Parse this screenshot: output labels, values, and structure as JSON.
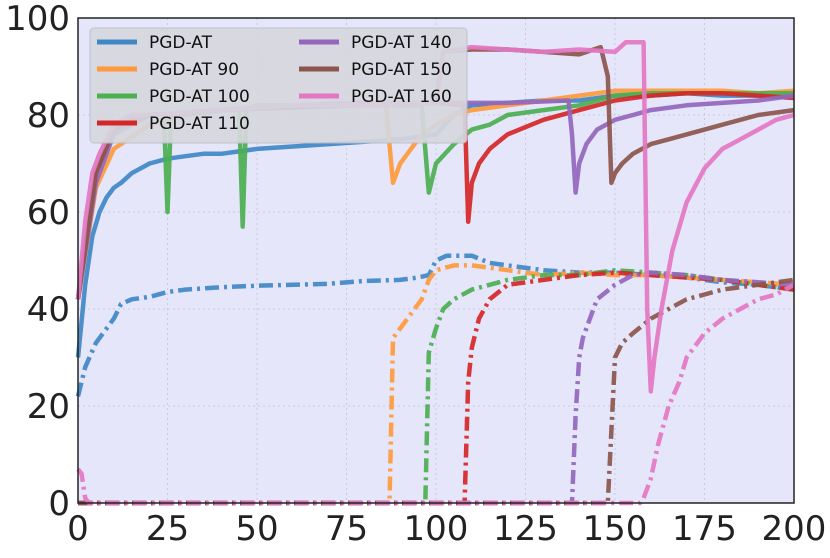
{
  "chart_data": {
    "type": "line",
    "title": "",
    "xlabel": "",
    "ylabel": "",
    "xlim": [
      0,
      200
    ],
    "ylim": [
      0,
      100
    ],
    "x_ticks": [
      0,
      25,
      50,
      75,
      100,
      125,
      150,
      175,
      200
    ],
    "y_ticks": [
      0,
      20,
      40,
      60,
      80,
      100
    ],
    "grid": true,
    "plot_background": "#e6e6fa",
    "legend_placement": "top-left",
    "line_styles": {
      "clean_accuracy": "solid",
      "robust_accuracy": "dash-dot"
    },
    "series": [
      {
        "name": "PGD-AT",
        "color": "#3f88c5",
        "solid": [
          [
            0,
            30
          ],
          [
            2,
            45
          ],
          [
            4,
            55
          ],
          [
            6,
            60
          ],
          [
            8,
            63
          ],
          [
            10,
            65
          ],
          [
            12,
            66
          ],
          [
            15,
            68
          ],
          [
            20,
            70
          ],
          [
            25,
            71
          ],
          [
            30,
            71.5
          ],
          [
            35,
            72
          ],
          [
            40,
            72
          ],
          [
            45,
            72.5
          ],
          [
            50,
            73
          ],
          [
            60,
            73.5
          ],
          [
            70,
            74
          ],
          [
            80,
            74.5
          ],
          [
            90,
            75
          ],
          [
            100,
            76
          ],
          [
            105,
            80
          ],
          [
            110,
            82
          ],
          [
            120,
            82.5
          ],
          [
            130,
            83
          ],
          [
            140,
            83
          ],
          [
            150,
            84
          ],
          [
            160,
            84
          ],
          [
            170,
            84.5
          ],
          [
            180,
            84
          ],
          [
            190,
            84
          ],
          [
            200,
            84
          ]
        ],
        "dashdot": [
          [
            0,
            22
          ],
          [
            2,
            28
          ],
          [
            5,
            33
          ],
          [
            8,
            36
          ],
          [
            10,
            38
          ],
          [
            12,
            41
          ],
          [
            15,
            42
          ],
          [
            20,
            42.5
          ],
          [
            25,
            43.5
          ],
          [
            30,
            44
          ],
          [
            40,
            44.5
          ],
          [
            50,
            44.8
          ],
          [
            60,
            45
          ],
          [
            70,
            45.2
          ],
          [
            80,
            45.8
          ],
          [
            90,
            46
          ],
          [
            95,
            46.5
          ],
          [
            98,
            47
          ],
          [
            100,
            50
          ],
          [
            103,
            51
          ],
          [
            110,
            51
          ],
          [
            115,
            49.5
          ],
          [
            120,
            49
          ],
          [
            130,
            48
          ],
          [
            140,
            47.5
          ],
          [
            150,
            47.5
          ],
          [
            160,
            47
          ],
          [
            170,
            46.5
          ],
          [
            180,
            45.5
          ],
          [
            190,
            45
          ],
          [
            200,
            44
          ]
        ]
      },
      {
        "name": "PGD-AT 90",
        "color": "#ff9a3c",
        "solid": [
          [
            0,
            42
          ],
          [
            5,
            65
          ],
          [
            10,
            73
          ],
          [
            20,
            78
          ],
          [
            30,
            80
          ],
          [
            40,
            81
          ],
          [
            50,
            81.5
          ],
          [
            60,
            82
          ],
          [
            70,
            82
          ],
          [
            80,
            82.5
          ],
          [
            86,
            82
          ],
          [
            88,
            66
          ],
          [
            90,
            70
          ],
          [
            92,
            72
          ],
          [
            95,
            75
          ],
          [
            100,
            78
          ],
          [
            105,
            80
          ],
          [
            110,
            81
          ],
          [
            120,
            82
          ],
          [
            130,
            83
          ],
          [
            140,
            84
          ],
          [
            150,
            85
          ],
          [
            160,
            85
          ],
          [
            170,
            85
          ],
          [
            180,
            85
          ],
          [
            190,
            84.5
          ],
          [
            200,
            85
          ]
        ],
        "dashdot": [
          [
            0,
            0
          ],
          [
            87,
            0
          ],
          [
            88,
            34
          ],
          [
            90,
            36
          ],
          [
            92,
            38
          ],
          [
            94,
            40
          ],
          [
            96,
            42
          ],
          [
            98,
            46
          ],
          [
            100,
            48
          ],
          [
            105,
            49
          ],
          [
            110,
            49
          ],
          [
            120,
            48
          ],
          [
            130,
            47
          ],
          [
            140,
            47.5
          ],
          [
            150,
            47
          ],
          [
            160,
            47
          ],
          [
            170,
            46.5
          ],
          [
            180,
            46
          ],
          [
            190,
            45.5
          ],
          [
            200,
            45
          ]
        ]
      },
      {
        "name": "PGD-AT 100",
        "color": "#4caf50",
        "solid": [
          [
            0,
            42
          ],
          [
            5,
            68
          ],
          [
            10,
            78
          ],
          [
            15,
            80
          ],
          [
            20,
            80
          ],
          [
            24,
            80
          ],
          [
            25,
            60
          ],
          [
            26,
            80
          ],
          [
            30,
            80
          ],
          [
            40,
            81
          ],
          [
            45,
            81
          ],
          [
            46,
            57
          ],
          [
            47,
            81
          ],
          [
            50,
            82
          ],
          [
            60,
            82
          ],
          [
            70,
            82
          ],
          [
            80,
            82
          ],
          [
            90,
            82
          ],
          [
            96,
            82
          ],
          [
            98,
            64
          ],
          [
            100,
            70
          ],
          [
            105,
            74
          ],
          [
            110,
            77
          ],
          [
            115,
            78
          ],
          [
            120,
            80
          ],
          [
            130,
            81
          ],
          [
            140,
            82
          ],
          [
            150,
            84
          ],
          [
            160,
            84.5
          ],
          [
            170,
            84.5
          ],
          [
            180,
            84.5
          ],
          [
            190,
            84.5
          ],
          [
            200,
            84.5
          ]
        ],
        "dashdot": [
          [
            0,
            0
          ],
          [
            97,
            0
          ],
          [
            98,
            31
          ],
          [
            100,
            36
          ],
          [
            102,
            40
          ],
          [
            105,
            42
          ],
          [
            110,
            44
          ],
          [
            115,
            45
          ],
          [
            120,
            46
          ],
          [
            130,
            47
          ],
          [
            140,
            47
          ],
          [
            150,
            48
          ],
          [
            160,
            47.5
          ],
          [
            170,
            47
          ],
          [
            180,
            46
          ],
          [
            190,
            45
          ],
          [
            200,
            44
          ]
        ]
      },
      {
        "name": "PGD-AT 110",
        "color": "#d62728",
        "solid": [
          [
            0,
            42
          ],
          [
            5,
            68
          ],
          [
            10,
            77
          ],
          [
            15,
            79
          ],
          [
            20,
            80
          ],
          [
            40,
            81
          ],
          [
            60,
            82
          ],
          [
            80,
            82
          ],
          [
            100,
            82.5
          ],
          [
            108,
            82
          ],
          [
            109,
            58
          ],
          [
            110,
            66
          ],
          [
            112,
            70
          ],
          [
            115,
            73
          ],
          [
            120,
            76
          ],
          [
            130,
            79
          ],
          [
            140,
            81
          ],
          [
            150,
            83
          ],
          [
            160,
            84
          ],
          [
            170,
            84.5
          ],
          [
            180,
            84.5
          ],
          [
            190,
            84
          ],
          [
            200,
            83.5
          ]
        ],
        "dashdot": [
          [
            0,
            0
          ],
          [
            108,
            0
          ],
          [
            109,
            25
          ],
          [
            110,
            32
          ],
          [
            112,
            38
          ],
          [
            115,
            42
          ],
          [
            120,
            45
          ],
          [
            130,
            46
          ],
          [
            140,
            47
          ],
          [
            150,
            47.5
          ],
          [
            160,
            47
          ],
          [
            170,
            46.5
          ],
          [
            180,
            46
          ],
          [
            190,
            45
          ],
          [
            200,
            44
          ]
        ]
      },
      {
        "name": "PGD-AT 140",
        "color": "#9467bd",
        "solid": [
          [
            0,
            42
          ],
          [
            5,
            66
          ],
          [
            10,
            76
          ],
          [
            20,
            80
          ],
          [
            40,
            81
          ],
          [
            60,
            82
          ],
          [
            80,
            82.5
          ],
          [
            100,
            82.5
          ],
          [
            120,
            82.5
          ],
          [
            137,
            83
          ],
          [
            138,
            76
          ],
          [
            139,
            64
          ],
          [
            140,
            70
          ],
          [
            142,
            74
          ],
          [
            145,
            77
          ],
          [
            150,
            79
          ],
          [
            155,
            80
          ],
          [
            160,
            81
          ],
          [
            170,
            82
          ],
          [
            180,
            82.5
          ],
          [
            190,
            83
          ],
          [
            200,
            84
          ]
        ],
        "dashdot": [
          [
            0,
            0
          ],
          [
            138,
            0
          ],
          [
            139,
            18
          ],
          [
            140,
            30
          ],
          [
            141,
            34
          ],
          [
            143,
            38
          ],
          [
            145,
            42
          ],
          [
            150,
            45
          ],
          [
            155,
            47
          ],
          [
            160,
            47.5
          ],
          [
            170,
            47
          ],
          [
            180,
            46
          ],
          [
            190,
            45.5
          ],
          [
            200,
            45
          ]
        ]
      },
      {
        "name": "PGD-AT 150",
        "color": "#8c564b",
        "solid": [
          [
            0,
            42
          ],
          [
            5,
            68
          ],
          [
            10,
            77
          ],
          [
            20,
            80
          ],
          [
            40,
            81
          ],
          [
            60,
            81.5
          ],
          [
            80,
            82
          ],
          [
            100,
            82.5
          ],
          [
            102,
            93
          ],
          [
            110,
            93.5
          ],
          [
            120,
            93.5
          ],
          [
            130,
            93
          ],
          [
            140,
            92.5
          ],
          [
            146,
            94
          ],
          [
            148,
            88
          ],
          [
            149,
            66
          ],
          [
            150,
            68
          ],
          [
            152,
            70
          ],
          [
            155,
            72
          ],
          [
            160,
            74
          ],
          [
            165,
            75
          ],
          [
            170,
            76
          ],
          [
            175,
            77
          ],
          [
            180,
            78
          ],
          [
            190,
            80
          ],
          [
            200,
            81
          ]
        ],
        "dashdot": [
          [
            0,
            0
          ],
          [
            148,
            0
          ],
          [
            149,
            15
          ],
          [
            150,
            30
          ],
          [
            152,
            33
          ],
          [
            155,
            35
          ],
          [
            160,
            38
          ],
          [
            165,
            40
          ],
          [
            170,
            42
          ],
          [
            175,
            43
          ],
          [
            180,
            44
          ],
          [
            190,
            45
          ],
          [
            200,
            46
          ]
        ]
      },
      {
        "name": "PGD-AT 160",
        "color": "#e377c2",
        "solid": [
          [
            0,
            42
          ],
          [
            2,
            58
          ],
          [
            4,
            68
          ],
          [
            6,
            72
          ],
          [
            10,
            78
          ],
          [
            15,
            80
          ],
          [
            20,
            80
          ],
          [
            40,
            81
          ],
          [
            60,
            82
          ],
          [
            80,
            82
          ],
          [
            100,
            82.5
          ],
          [
            102,
            93
          ],
          [
            110,
            94
          ],
          [
            120,
            93.5
          ],
          [
            130,
            93
          ],
          [
            140,
            93.5
          ],
          [
            150,
            93
          ],
          [
            153,
            95
          ],
          [
            157,
            95
          ],
          [
            158,
            95
          ],
          [
            159,
            40
          ],
          [
            160,
            23
          ],
          [
            161,
            30
          ],
          [
            163,
            40
          ],
          [
            166,
            52
          ],
          [
            170,
            62
          ],
          [
            175,
            69
          ],
          [
            180,
            73
          ],
          [
            185,
            75
          ],
          [
            190,
            77
          ],
          [
            195,
            79
          ],
          [
            200,
            80
          ]
        ],
        "dashdot": [
          [
            0,
            7
          ],
          [
            1,
            6
          ],
          [
            2,
            1
          ],
          [
            3,
            0
          ],
          [
            157,
            0
          ],
          [
            158,
            1
          ],
          [
            160,
            5
          ],
          [
            162,
            12
          ],
          [
            165,
            20
          ],
          [
            168,
            25
          ],
          [
            170,
            30
          ],
          [
            175,
            35
          ],
          [
            180,
            38
          ],
          [
            185,
            40
          ],
          [
            190,
            42
          ],
          [
            195,
            43
          ],
          [
            200,
            45
          ]
        ]
      }
    ]
  }
}
